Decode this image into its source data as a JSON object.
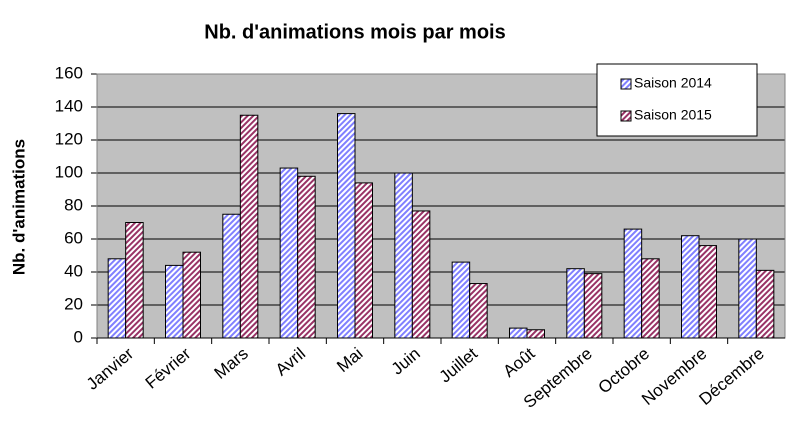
{
  "chart_data": {
    "type": "bar",
    "title": "Nb. d'animations mois par mois",
    "y_label": "Nb. d'animations",
    "categories": [
      "Janvier",
      "Février",
      "Mars",
      "Avril",
      "Mai",
      "Juin",
      "Juillet",
      "Août",
      "Septembre",
      "Octobre",
      "Novembre",
      "Décembre"
    ],
    "series": [
      {
        "name": "Saison 2014",
        "color": "#8080ff",
        "values": [
          48,
          44,
          75,
          103,
          136,
          100,
          46,
          6,
          42,
          66,
          62,
          60
        ]
      },
      {
        "name": "Saison 2015",
        "color": "#993366",
        "values": [
          70,
          52,
          135,
          98,
          94,
          77,
          33,
          5,
          39,
          48,
          56,
          41
        ]
      }
    ],
    "ylim": [
      0,
      160
    ],
    "yticks": [
      0,
      20,
      40,
      60,
      80,
      100,
      120,
      140,
      160
    ],
    "grid": true,
    "legend": "top-right"
  }
}
